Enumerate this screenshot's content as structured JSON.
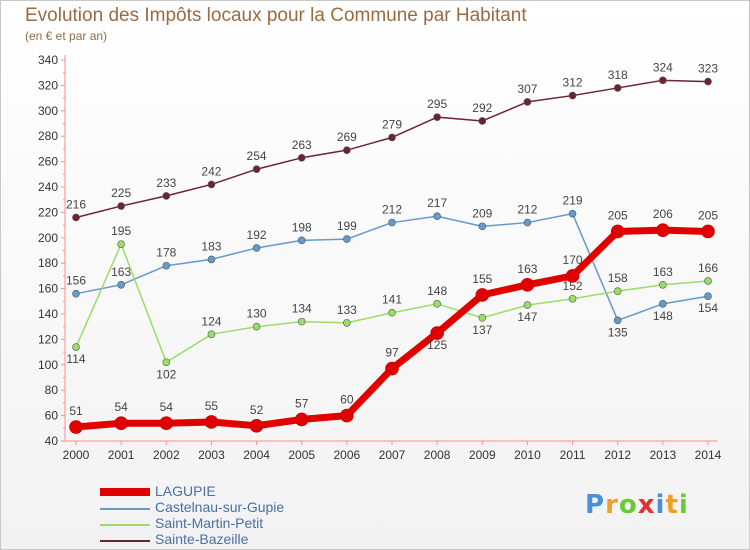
{
  "colors": {
    "LAGUPIE": "#e00000",
    "Castelnau-sur-Gupie": "#6699cc",
    "Saint-Martin-Petit": "#99dd66",
    "Sainte-Bazeille": "#6b2430",
    "title": "#9a6a43",
    "legend_text": "#4a6fa5"
  },
  "brand": {
    "text": "Proxiti",
    "letters": [
      "P",
      "r",
      "o",
      "x",
      "i",
      "t",
      "i"
    ],
    "letter_colors": [
      "#4a90d9",
      "#f0a020",
      "#66cc33",
      "#e03030",
      "#4a90d9",
      "#f0a020",
      "#66cc33"
    ]
  },
  "chart_data": {
    "type": "line",
    "title": "Evolution des Impôts locaux pour la Commune par Habitant",
    "subtitle": "(en € et par an)",
    "xlabel": "",
    "ylabel": "",
    "x": [
      2000,
      2001,
      2002,
      2003,
      2004,
      2005,
      2006,
      2007,
      2008,
      2009,
      2010,
      2011,
      2012,
      2013,
      2014
    ],
    "ylim": [
      40,
      340
    ],
    "yticks": [
      40,
      60,
      80,
      100,
      120,
      140,
      160,
      180,
      200,
      220,
      240,
      260,
      280,
      300,
      320,
      340
    ],
    "grid": false,
    "legend_position": "bottom-left",
    "series": [
      {
        "name": "Sainte-Bazeille",
        "values": [
          216,
          225,
          233,
          242,
          254,
          263,
          269,
          279,
          295,
          292,
          307,
          312,
          318,
          324,
          323
        ]
      },
      {
        "name": "Castelnau-sur-Gupie",
        "values": [
          156,
          163,
          178,
          183,
          192,
          198,
          199,
          212,
          217,
          209,
          212,
          219,
          135,
          148,
          154
        ]
      },
      {
        "name": "Saint-Martin-Petit",
        "values": [
          114,
          195,
          102,
          124,
          130,
          134,
          133,
          141,
          148,
          137,
          147,
          152,
          158,
          163,
          166
        ]
      },
      {
        "name": "LAGUPIE",
        "values": [
          51,
          54,
          54,
          55,
          52,
          57,
          60,
          97,
          125,
          155,
          163,
          170,
          205,
          206,
          205
        ]
      }
    ],
    "legend": [
      "LAGUPIE",
      "Castelnau-sur-Gupie",
      "Saint-Martin-Petit",
      "Sainte-Bazeille"
    ]
  }
}
